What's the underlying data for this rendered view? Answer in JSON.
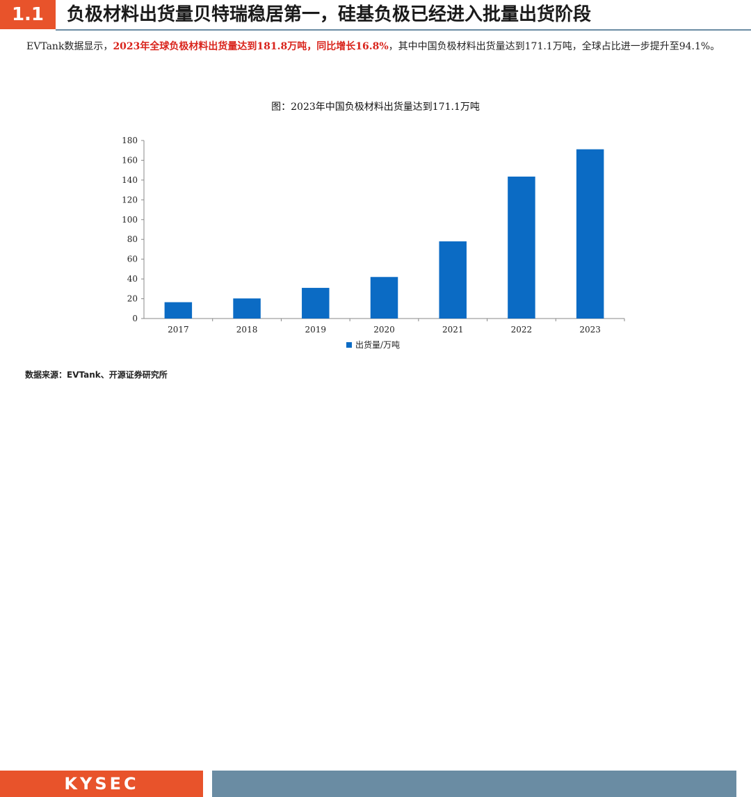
{
  "header": {
    "section_number": "1.1",
    "title": "负极材料出货量贝特瑞稳居第一，硅基负极已经进入批量出货阶段"
  },
  "summary": {
    "part1": "EVTank数据显示，",
    "highlight": "2023年全球负极材料出货量达到181.8万吨，同比增长16.8%",
    "part2": "，其中中国负极材料出货量达到171.1万吨，全球占比进一步提升至94.1%。"
  },
  "source": "数据来源：EVTank、开源证券研究所",
  "logo": "KYSEC",
  "colors": {
    "accent": "#e8532b",
    "bar": "#0b6bc4",
    "band": "#6a8ca3",
    "highlight": "#d9241c"
  },
  "chart_data": {
    "type": "bar",
    "title": "图：2023年中国负极材料出货量达到171.1万吨",
    "categories": [
      "2017",
      "2018",
      "2019",
      "2020",
      "2021",
      "2022",
      "2023"
    ],
    "series": [
      {
        "name": "出货量/万吨",
        "values": [
          16.5,
          20.3,
          31.0,
          42.0,
          78.0,
          143.5,
          171.1
        ]
      }
    ],
    "ylim": [
      0,
      180
    ],
    "yticks": [
      0,
      20,
      40,
      60,
      80,
      100,
      120,
      140,
      160,
      180
    ],
    "grid": false,
    "legend": "bottom"
  }
}
